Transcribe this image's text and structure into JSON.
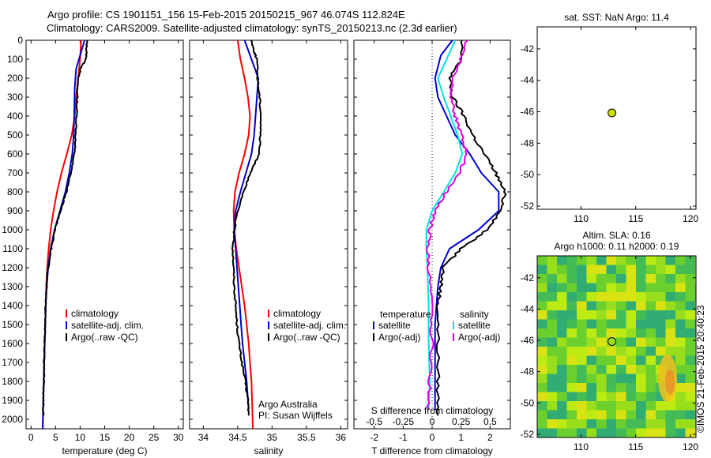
{
  "header": {
    "line1": "Argo profile: CS 1901151_156 15-Feb-2015 20150215_967 46.074S 112.824E",
    "line2": "Climatology: CARS2009. Satellite-adjusted climatology: synTS_20150213.nc (2.3d earlier)"
  },
  "watermark": "©IMOS 21-Feb-2015 20:40:23",
  "colors": {
    "climatology": "#ff0000",
    "satellite": "#0000cc",
    "argo": "#000000",
    "satellite_sal": "#00e0e0",
    "argo_sal": "#e000e0"
  },
  "chart_data": [
    {
      "type": "line",
      "name": "temperature",
      "xlabel": "temperature (deg C)",
      "ylabel": "",
      "xlim": [
        -1,
        31
      ],
      "ylim": [
        2050,
        0
      ],
      "xticks": [
        0,
        5,
        10,
        15,
        20,
        25,
        30
      ],
      "yticks": [
        0,
        100,
        200,
        300,
        400,
        500,
        600,
        700,
        800,
        900,
        1000,
        1100,
        1200,
        1300,
        1400,
        1500,
        1600,
        1700,
        1800,
        1900,
        2000
      ],
      "legend": [
        "climatology",
        "satellite-adj. clim.",
        "Argo(..raw -QC)"
      ],
      "series": [
        {
          "name": "climatology",
          "color": "#ff0000",
          "points": [
            [
              10.2,
              0
            ],
            [
              10.0,
              100
            ],
            [
              9.6,
              200
            ],
            [
              9.2,
              300
            ],
            [
              8.9,
              400
            ],
            [
              8.3,
              500
            ],
            [
              7.3,
              600
            ],
            [
              6.2,
              700
            ],
            [
              5.3,
              800
            ],
            [
              4.6,
              900
            ],
            [
              4.0,
              1000
            ],
            [
              3.6,
              1100
            ],
            [
              3.3,
              1200
            ],
            [
              3.1,
              1300
            ],
            [
              3.0,
              1400
            ],
            [
              2.9,
              1500
            ],
            [
              2.8,
              1600
            ],
            [
              2.7,
              1700
            ],
            [
              2.6,
              1800
            ],
            [
              2.5,
              1900
            ],
            [
              2.4,
              2050
            ]
          ]
        },
        {
          "name": "satellite-adj. clim.",
          "color": "#0000cc",
          "points": [
            [
              10.9,
              0
            ],
            [
              10.0,
              80
            ],
            [
              9.2,
              150
            ],
            [
              8.9,
              250
            ],
            [
              8.8,
              400
            ],
            [
              8.7,
              500
            ],
            [
              8.4,
              600
            ],
            [
              7.8,
              700
            ],
            [
              7.0,
              800
            ],
            [
              5.9,
              900
            ],
            [
              4.8,
              1000
            ],
            [
              4.0,
              1100
            ],
            [
              3.5,
              1200
            ],
            [
              3.2,
              1300
            ],
            [
              3.0,
              1400
            ],
            [
              2.9,
              1500
            ],
            [
              2.8,
              1600
            ],
            [
              2.7,
              1700
            ],
            [
              2.6,
              1800
            ],
            [
              2.5,
              1900
            ],
            [
              2.4,
              2050
            ]
          ]
        },
        {
          "name": "Argo(..raw -QC)",
          "color": "#000000",
          "points": [
            [
              11.4,
              0
            ],
            [
              11.3,
              50
            ],
            [
              11.2,
              100
            ],
            [
              10.1,
              150
            ],
            [
              9.6,
              200
            ],
            [
              9.4,
              300
            ],
            [
              9.3,
              400
            ],
            [
              9.1,
              500
            ],
            [
              8.8,
              600
            ],
            [
              8.1,
              700
            ],
            [
              7.2,
              800
            ],
            [
              6.0,
              900
            ],
            [
              4.9,
              1000
            ],
            [
              4.1,
              1100
            ],
            [
              3.5,
              1200
            ],
            [
              3.2,
              1300
            ],
            [
              3.0,
              1400
            ],
            [
              2.9,
              1500
            ],
            [
              2.8,
              1600
            ],
            [
              2.7,
              1700
            ],
            [
              2.6,
              1800
            ],
            [
              2.5,
              1900
            ],
            [
              2.5,
              1980
            ]
          ]
        }
      ]
    },
    {
      "type": "line",
      "name": "salinity",
      "xlabel": "salinity",
      "xlim": [
        33.8,
        36.1
      ],
      "ylim": [
        2050,
        0
      ],
      "xticks": [
        34,
        34.5,
        35,
        35.5,
        36
      ],
      "xticklabels": [
        "34",
        "34.5",
        "35",
        "35.5",
        "36"
      ],
      "legend": [
        "climatology",
        "satellite-adj. clim.",
        "Argo(..raw -QC)"
      ],
      "annotation": [
        "Argo Australia",
        "PI: Susan Wijffels"
      ],
      "series": [
        {
          "name": "climatology",
          "color": "#ff0000",
          "points": [
            [
              34.5,
              0
            ],
            [
              34.54,
              100
            ],
            [
              34.6,
              200
            ],
            [
              34.65,
              300
            ],
            [
              34.68,
              400
            ],
            [
              34.66,
              500
            ],
            [
              34.6,
              600
            ],
            [
              34.52,
              700
            ],
            [
              34.46,
              800
            ],
            [
              34.44,
              900
            ],
            [
              34.45,
              1000
            ],
            [
              34.48,
              1100
            ],
            [
              34.52,
              1200
            ],
            [
              34.56,
              1300
            ],
            [
              34.6,
              1400
            ],
            [
              34.63,
              1500
            ],
            [
              34.66,
              1600
            ],
            [
              34.68,
              1700
            ],
            [
              34.7,
              1800
            ],
            [
              34.71,
              1900
            ],
            [
              34.72,
              2050
            ]
          ]
        },
        {
          "name": "satellite-adj. clim.",
          "color": "#0000cc",
          "points": [
            [
              34.6,
              0
            ],
            [
              34.7,
              100
            ],
            [
              34.8,
              200
            ],
            [
              34.78,
              300
            ],
            [
              34.74,
              500
            ],
            [
              34.7,
              600
            ],
            [
              34.62,
              700
            ],
            [
              34.54,
              800
            ],
            [
              34.47,
              900
            ],
            [
              34.45,
              1000
            ],
            [
              34.47,
              1100
            ],
            [
              34.49,
              1200
            ],
            [
              34.51,
              1300
            ],
            [
              34.53,
              1400
            ],
            [
              34.55,
              1500
            ],
            [
              34.57,
              1600
            ],
            [
              34.6,
              1700
            ],
            [
              34.63,
              1800
            ],
            [
              34.65,
              1900
            ],
            [
              34.66,
              1950
            ]
          ]
        },
        {
          "name": "Argo(..raw -QC)",
          "color": "#000000",
          "points": [
            [
              34.7,
              0
            ],
            [
              34.74,
              60
            ],
            [
              34.78,
              100
            ],
            [
              34.79,
              200
            ],
            [
              34.82,
              300
            ],
            [
              34.84,
              400
            ],
            [
              34.83,
              500
            ],
            [
              34.81,
              600
            ],
            [
              34.69,
              700
            ],
            [
              34.58,
              800
            ],
            [
              34.5,
              900
            ],
            [
              34.45,
              1000
            ],
            [
              34.43,
              1100
            ],
            [
              34.44,
              1200
            ],
            [
              34.45,
              1300
            ],
            [
              34.47,
              1400
            ],
            [
              34.49,
              1500
            ],
            [
              34.52,
              1600
            ],
            [
              34.56,
              1700
            ],
            [
              34.61,
              1800
            ],
            [
              34.65,
              1900
            ],
            [
              34.66,
              1980
            ]
          ]
        }
      ]
    },
    {
      "type": "line",
      "name": "difference",
      "xlabel": "T difference from climatology",
      "xlabel_top": "S difference from climatology",
      "xlim": [
        -2.7,
        2.7
      ],
      "ylim": [
        2050,
        0
      ],
      "xticks": [
        -2,
        -1,
        0,
        1,
        2
      ],
      "sal_ticks": [
        -0.5,
        -0.25,
        0,
        0.25,
        0.5
      ],
      "sal_ticklabels": [
        "-0.5",
        "-0.25",
        "0",
        "0.25",
        "0.5"
      ],
      "legend_temperature": {
        "title": "temperature",
        "items": [
          "satellite",
          "Argo(-adj)"
        ]
      },
      "legend_salinity": {
        "title": "salinity",
        "items": [
          "satellite",
          "Argo(-adj)"
        ]
      },
      "series": [
        {
          "name": "temperature satellite",
          "color": "#0000cc",
          "points": [
            [
              0.7,
              0
            ],
            [
              0.3,
              80
            ],
            [
              0.1,
              200
            ],
            [
              0.2,
              300
            ],
            [
              0.5,
              400
            ],
            [
              0.8,
              500
            ],
            [
              1.3,
              600
            ],
            [
              1.7,
              700
            ],
            [
              2.3,
              800
            ],
            [
              2.3,
              900
            ],
            [
              1.6,
              1000
            ],
            [
              0.6,
              1100
            ],
            [
              0.3,
              1200
            ],
            [
              0.2,
              1300
            ],
            [
              0.15,
              1400
            ],
            [
              0.1,
              1500
            ],
            [
              0.1,
              1700
            ],
            [
              0.1,
              1950
            ]
          ]
        },
        {
          "name": "temperature Argo(-adj)",
          "color": "#000000",
          "points": [
            [
              1.0,
              0
            ],
            [
              1.0,
              100
            ],
            [
              0.6,
              200
            ],
            [
              0.7,
              300
            ],
            [
              1.1,
              400
            ],
            [
              1.4,
              500
            ],
            [
              1.8,
              600
            ],
            [
              2.2,
              700
            ],
            [
              2.5,
              800
            ],
            [
              2.4,
              900
            ],
            [
              1.9,
              1000
            ],
            [
              1.0,
              1100
            ],
            [
              0.4,
              1200
            ],
            [
              0.3,
              1300
            ],
            [
              0.2,
              1400
            ],
            [
              0.2,
              1600
            ],
            [
              0.2,
              1800
            ],
            [
              0.2,
              1980
            ]
          ]
        },
        {
          "name": "salinity satellite",
          "color": "#00e0e0",
          "points": [
            [
              0.2,
              0
            ],
            [
              0.05,
              200
            ],
            [
              0.1,
              300
            ],
            [
              0.16,
              400
            ],
            [
              0.22,
              500
            ],
            [
              0.26,
              600
            ],
            [
              0.2,
              700
            ],
            [
              0.1,
              800
            ],
            [
              0.0,
              900
            ],
            [
              -0.05,
              1000
            ],
            [
              -0.05,
              1100
            ],
            [
              -0.04,
              1200
            ],
            [
              -0.03,
              1400
            ],
            [
              -0.03,
              1600
            ],
            [
              -0.02,
              1800
            ],
            [
              -0.03,
              1950
            ]
          ]
        },
        {
          "name": "salinity Argo(-adj)",
          "color": "#e000e0",
          "points": [
            [
              0.3,
              0
            ],
            [
              0.25,
              100
            ],
            [
              0.18,
              200
            ],
            [
              0.17,
              300
            ],
            [
              0.2,
              400
            ],
            [
              0.25,
              500
            ],
            [
              0.3,
              600
            ],
            [
              0.24,
              700
            ],
            [
              0.12,
              800
            ],
            [
              0.03,
              900
            ],
            [
              -0.02,
              1000
            ],
            [
              -0.04,
              1100
            ],
            [
              -0.03,
              1200
            ],
            [
              -0.01,
              1400
            ],
            [
              0.0,
              1600
            ],
            [
              -0.02,
              1800
            ],
            [
              -0.03,
              1950
            ]
          ]
        }
      ]
    },
    {
      "type": "scatter",
      "name": "sst_map",
      "title": "sat. SST: NaN Argo: 11.4",
      "xlim": [
        106,
        120.5
      ],
      "ylim": [
        -52.2,
        -40.6
      ],
      "xticks": [
        110,
        115,
        120
      ],
      "yticks": [
        -42,
        -44,
        -46,
        -48,
        -50,
        -52
      ],
      "points": [
        [
          112.824,
          -46.074
        ]
      ],
      "marker_color": "#ccdd00"
    },
    {
      "type": "heatmap",
      "name": "sla_map",
      "title_line1": "Altim. SLA: 0.16",
      "title_line2": "Argo h1000: 0.11 h2000: 0.19",
      "xlim": [
        106,
        120.5
      ],
      "ylim": [
        -52.2,
        -40.6
      ],
      "xticks": [
        110,
        115,
        120
      ],
      "yticks": [
        -42,
        -44,
        -46,
        -48,
        -50,
        -52
      ],
      "points": [
        [
          112.824,
          -46.074
        ]
      ]
    }
  ]
}
